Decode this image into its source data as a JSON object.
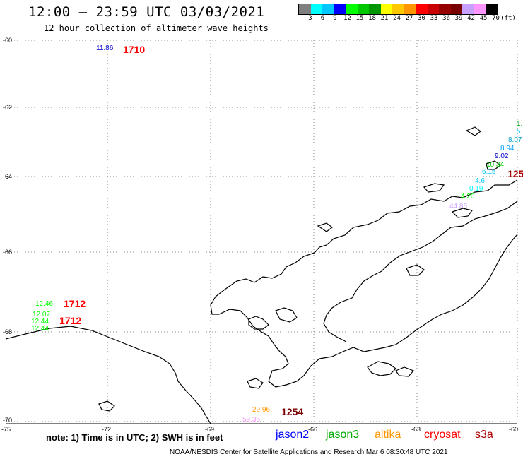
{
  "header": {
    "title": "12:00 — 23:59 UTC 03/03/2021",
    "subtitle": "12 hour collection of altimeter wave heights"
  },
  "colorbar": {
    "colors": [
      "#7f7f7f",
      "#00ffff",
      "#00c8ff",
      "#0000ff",
      "#00ff00",
      "#00c800",
      "#009600",
      "#ffff00",
      "#ffc800",
      "#ff9600",
      "#ff0000",
      "#c80000",
      "#960000",
      "#780000",
      "#c8a0ff",
      "#ff96ff",
      "#000000"
    ],
    "ticks": [
      "3",
      "6",
      "9",
      "12",
      "15",
      "18",
      "21",
      "24",
      "27",
      "30",
      "33",
      "36",
      "39",
      "42",
      "45",
      "70",
      "(ft)"
    ]
  },
  "axes": {
    "lat_labels": [
      "-60",
      "-62",
      "-64",
      "-66",
      "-68",
      "-70"
    ],
    "lon_labels": [
      "-75",
      "-72",
      "-69",
      "-66",
      "-63",
      "-60"
    ]
  },
  "observations": [
    {
      "text": "11.86",
      "color": "#0000cc",
      "big": false
    },
    {
      "text": "1710",
      "color": "#ff0000",
      "big": true
    },
    {
      "text": "1.",
      "color": "#00aa00",
      "big": false
    },
    {
      "text": "5.",
      "color": "#00c8ff",
      "big": false
    },
    {
      "text": "8.07",
      "color": "#00a0c8",
      "big": false
    },
    {
      "text": "8.94",
      "color": "#00a0ff",
      "big": false
    },
    {
      "text": "9.02",
      "color": "#0000cc",
      "big": false
    },
    {
      "text": "10.34",
      "color": "#00cc00",
      "big": false
    },
    {
      "text": "6.15",
      "color": "#00c8ff",
      "big": false
    },
    {
      "text": "125",
      "color": "#aa0000",
      "big": true
    },
    {
      "text": "4.6",
      "color": "#00c8ff",
      "big": false
    },
    {
      "text": "0.19",
      "color": "#00ffff",
      "big": false
    },
    {
      "text": "4.20",
      "color": "#00ff00",
      "big": false
    },
    {
      "text": "44.86",
      "color": "#c8a0ff",
      "big": false
    },
    {
      "text": "12.46",
      "color": "#00ff00",
      "big": false
    },
    {
      "text": "1712",
      "color": "#ff0000",
      "big": true
    },
    {
      "text": "12.07",
      "color": "#00ff00",
      "big": false
    },
    {
      "text": "12.44",
      "color": "#00ff00",
      "big": false
    },
    {
      "text": "1712",
      "color": "#ff0000",
      "big": true
    },
    {
      "text": "12.44",
      "color": "#00ff00",
      "big": false
    },
    {
      "text": "29.96",
      "color": "#ff9600",
      "big": false
    },
    {
      "text": "1254",
      "color": "#780000",
      "big": true
    },
    {
      "text": "59.35",
      "color": "#ff96ff",
      "big": false
    }
  ],
  "footer": {
    "note": "note: 1) Time is in UTC; 2) SWH is in feet",
    "satellites": [
      {
        "name": "jason2",
        "color": "#0000ff"
      },
      {
        "name": "jason3",
        "color": "#00aa00"
      },
      {
        "name": "altika",
        "color": "#ff9600"
      },
      {
        "name": "cryosat",
        "color": "#ff0000"
      },
      {
        "name": "s3a",
        "color": "#aa0000"
      }
    ],
    "credit": "NOAA/NESDIS Center for Satellite Applications and Research    Mar  6 08:30:48 UTC 2021"
  }
}
